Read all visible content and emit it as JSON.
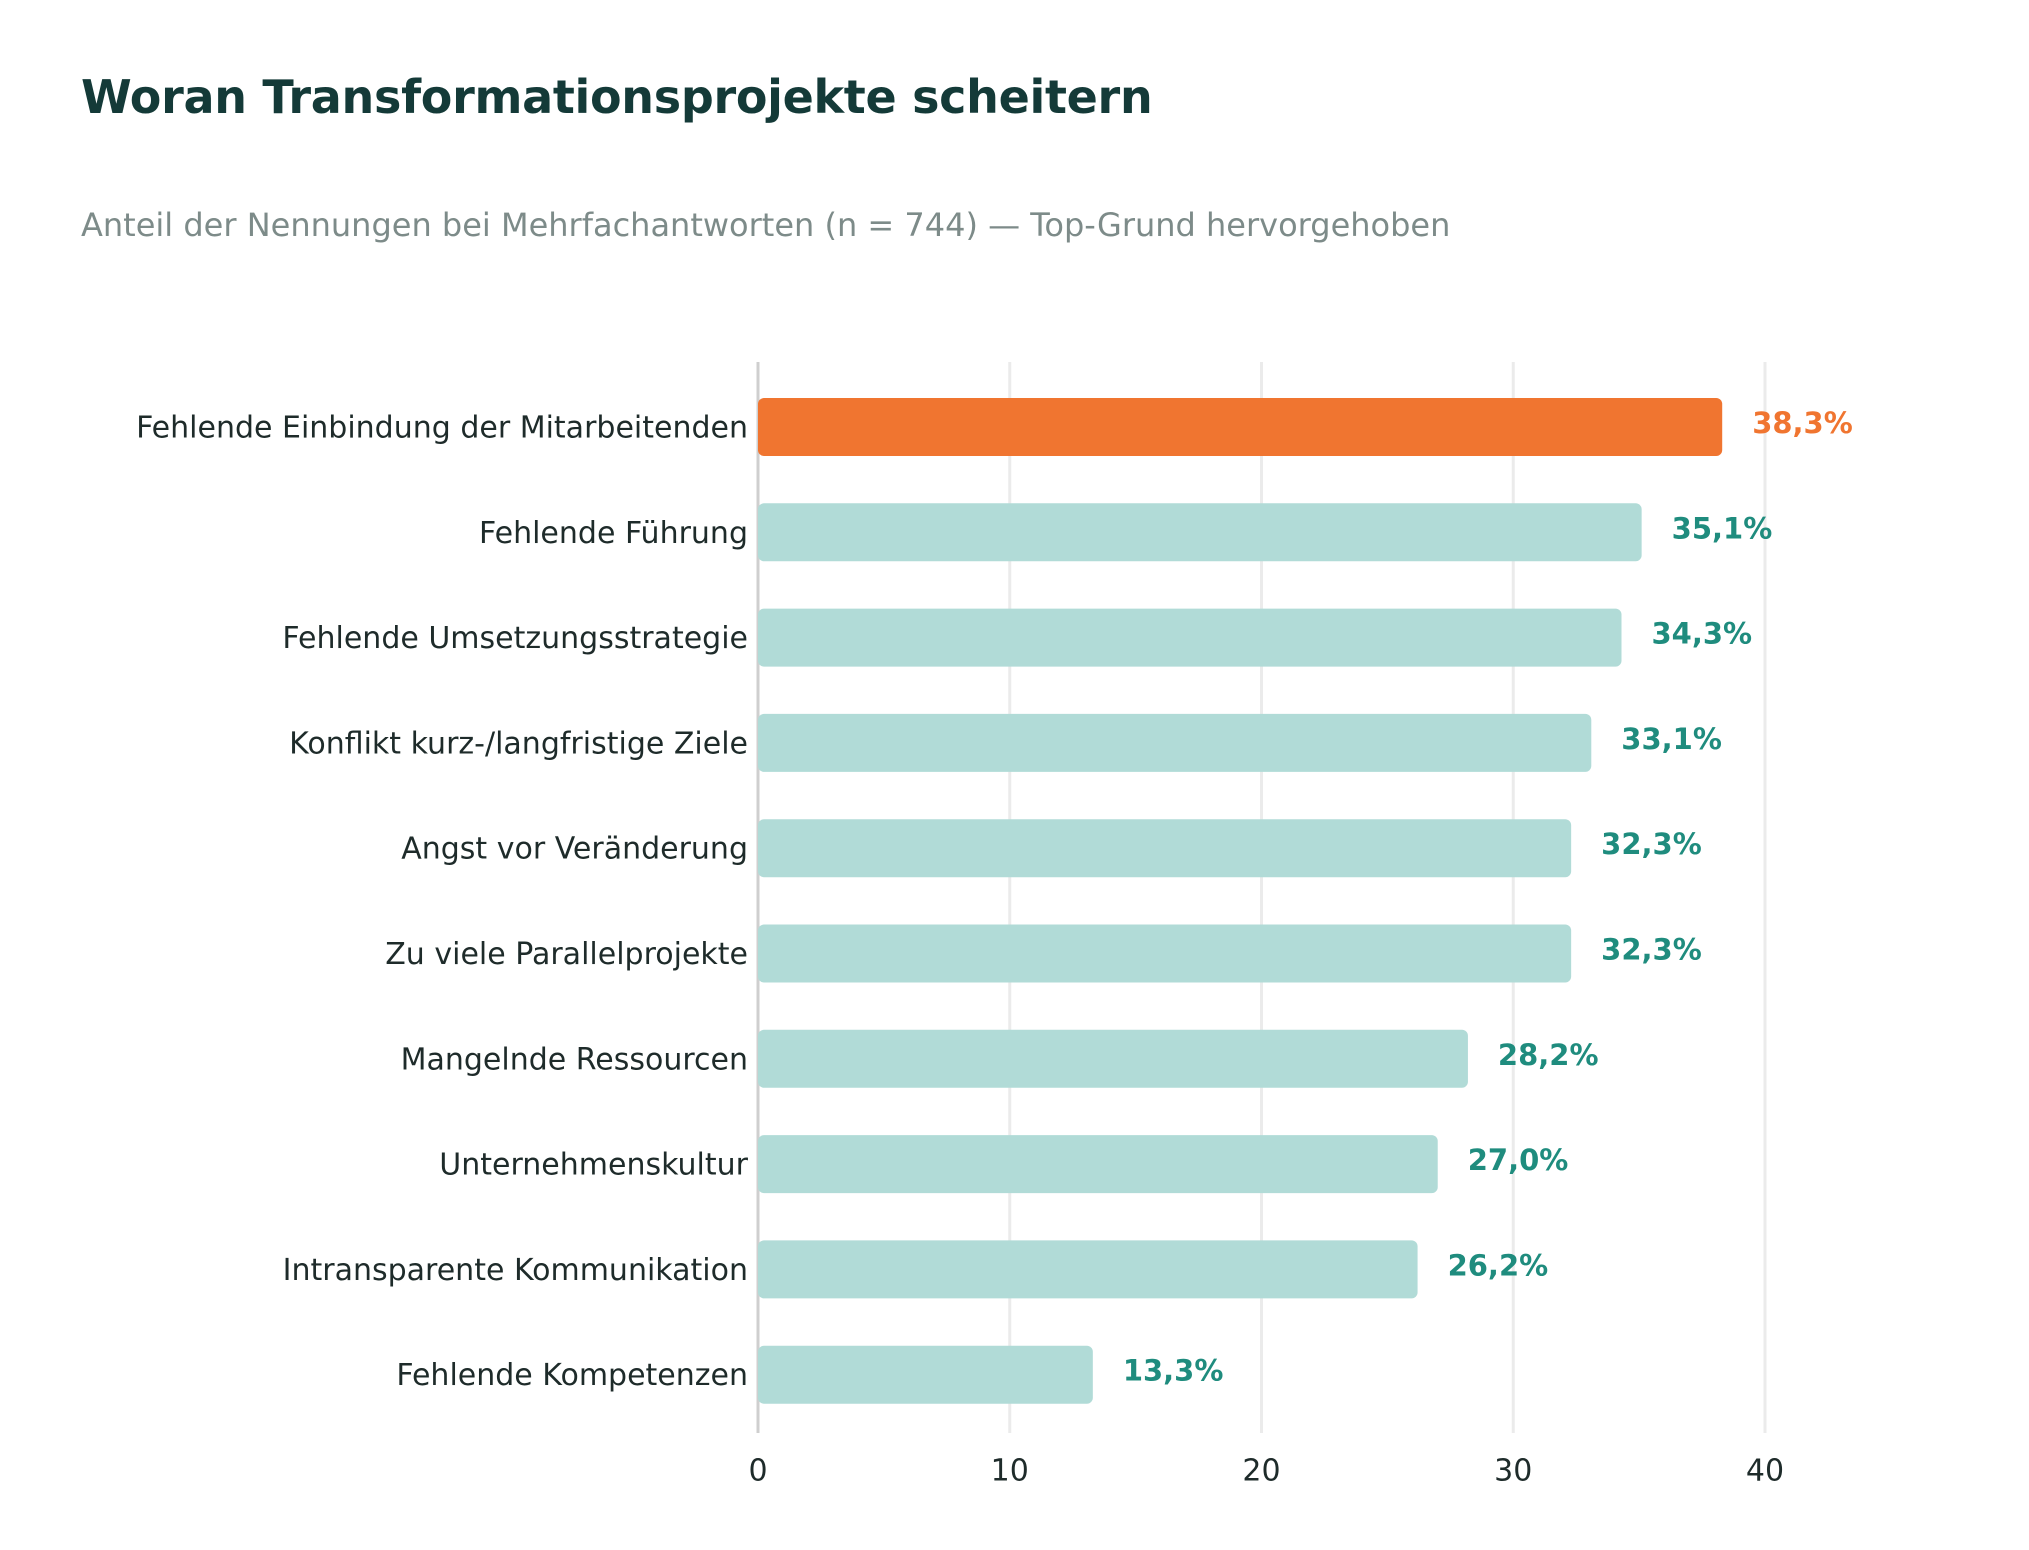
{
  "chart_data": {
    "type": "bar",
    "orientation": "horizontal",
    "title": "Woran Transformationsprojekte scheitern",
    "subtitle": "Anteil der Nennungen bei Mehrfachantworten (n = 744) — Top-Grund hervorgehoben",
    "xlabel": "",
    "ylabel": "",
    "xlim": [
      0,
      40
    ],
    "xticks": [
      0,
      10,
      20,
      30,
      40
    ],
    "grid": "vertical",
    "highlighted_category": "Fehlende Einbindung der Mitarbeitenden",
    "colors": {
      "highlight_bar": "#f07530",
      "highlight_label": "#f07530",
      "default_bar": "#b1dbd7",
      "default_label": "#1f8c7e",
      "grid": "#ebebeb",
      "axis": "#cfcfcf"
    },
    "categories": [
      "Fehlende Einbindung der Mitarbeitenden",
      "Fehlende Führung",
      "Fehlende Umsetzungsstrategie",
      "Konflikt kurz-/langfristige Ziele",
      "Angst vor Veränderung",
      "Zu viele Parallelprojekte",
      "Mangelnde Ressourcen",
      "Unternehmenskultur",
      "Intransparente Kommunikation",
      "Fehlende Kompetenzen"
    ],
    "values": [
      38.3,
      35.1,
      34.3,
      33.1,
      32.3,
      32.3,
      28.2,
      27.0,
      26.2,
      13.3
    ],
    "value_labels": [
      "38,3%",
      "35,1%",
      "34,3%",
      "33,1%",
      "32,3%",
      "32,3%",
      "28,2%",
      "27,0%",
      "26,2%",
      "13,3%"
    ]
  }
}
